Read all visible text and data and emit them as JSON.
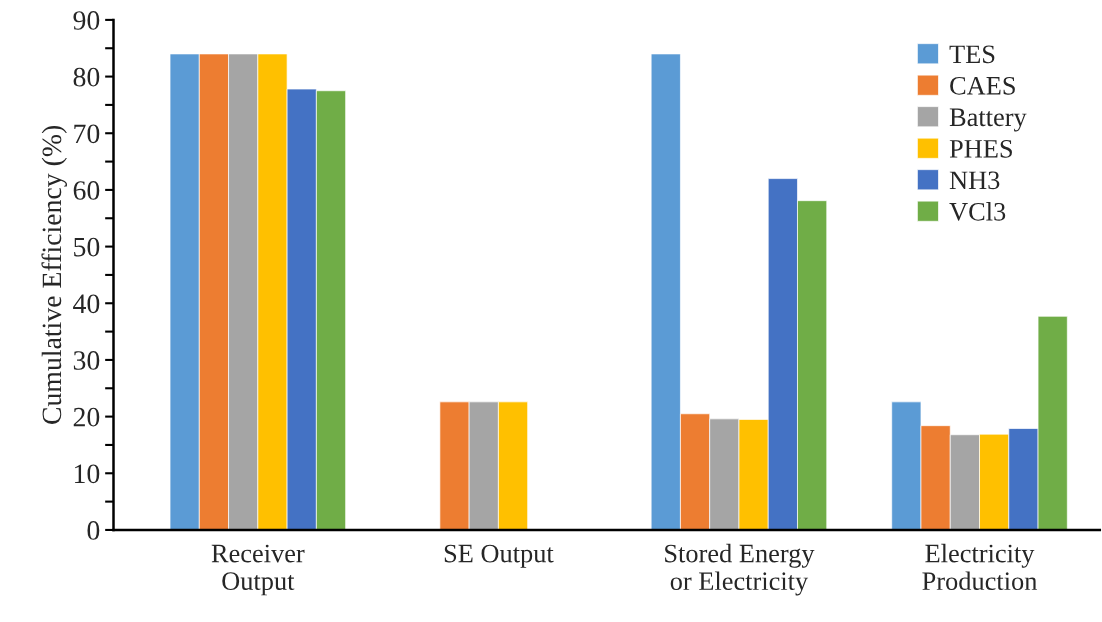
{
  "chart_data": {
    "type": "bar",
    "ylabel": "Cumulative Efficiency (%)",
    "categories": [
      "Receiver\nOutput",
      "SE Output",
      "Stored Energy\nor Electricity",
      "Electricity\nProduction"
    ],
    "series": [
      {
        "name": "TES",
        "color": "#5b9bd5",
        "values": [
          84.0,
          null,
          84.0,
          22.6
        ]
      },
      {
        "name": "CAES",
        "color": "#ed7d31",
        "values": [
          84.0,
          22.6,
          20.5,
          18.4
        ]
      },
      {
        "name": "Battery",
        "color": "#a5a5a5",
        "values": [
          84.0,
          22.6,
          19.6,
          16.8
        ]
      },
      {
        "name": "PHES",
        "color": "#ffc000",
        "values": [
          84.0,
          22.6,
          19.5,
          16.9
        ]
      },
      {
        "name": "NH3",
        "color": "#4472c4",
        "values": [
          77.8,
          null,
          62.0,
          17.9
        ]
      },
      {
        "name": "VCl3",
        "color": "#70ad47",
        "values": [
          77.5,
          null,
          58.1,
          37.7
        ]
      }
    ],
    "ylim": [
      0,
      90
    ],
    "yticks": [
      0,
      {
        "value": 5,
        "label": null
      },
      10,
      {
        "value": 15,
        "label": null
      },
      20,
      {
        "value": 25,
        "label": null
      },
      30,
      {
        "value": 35,
        "label": null
      },
      40,
      {
        "value": 45,
        "label": null
      },
      50,
      {
        "value": 55,
        "label": null
      },
      60,
      {
        "value": 65,
        "label": null
      },
      70,
      {
        "value": 75,
        "label": null
      },
      80,
      {
        "value": 85,
        "label": null
      },
      90
    ],
    "grid": false,
    "legend": "top right"
  }
}
